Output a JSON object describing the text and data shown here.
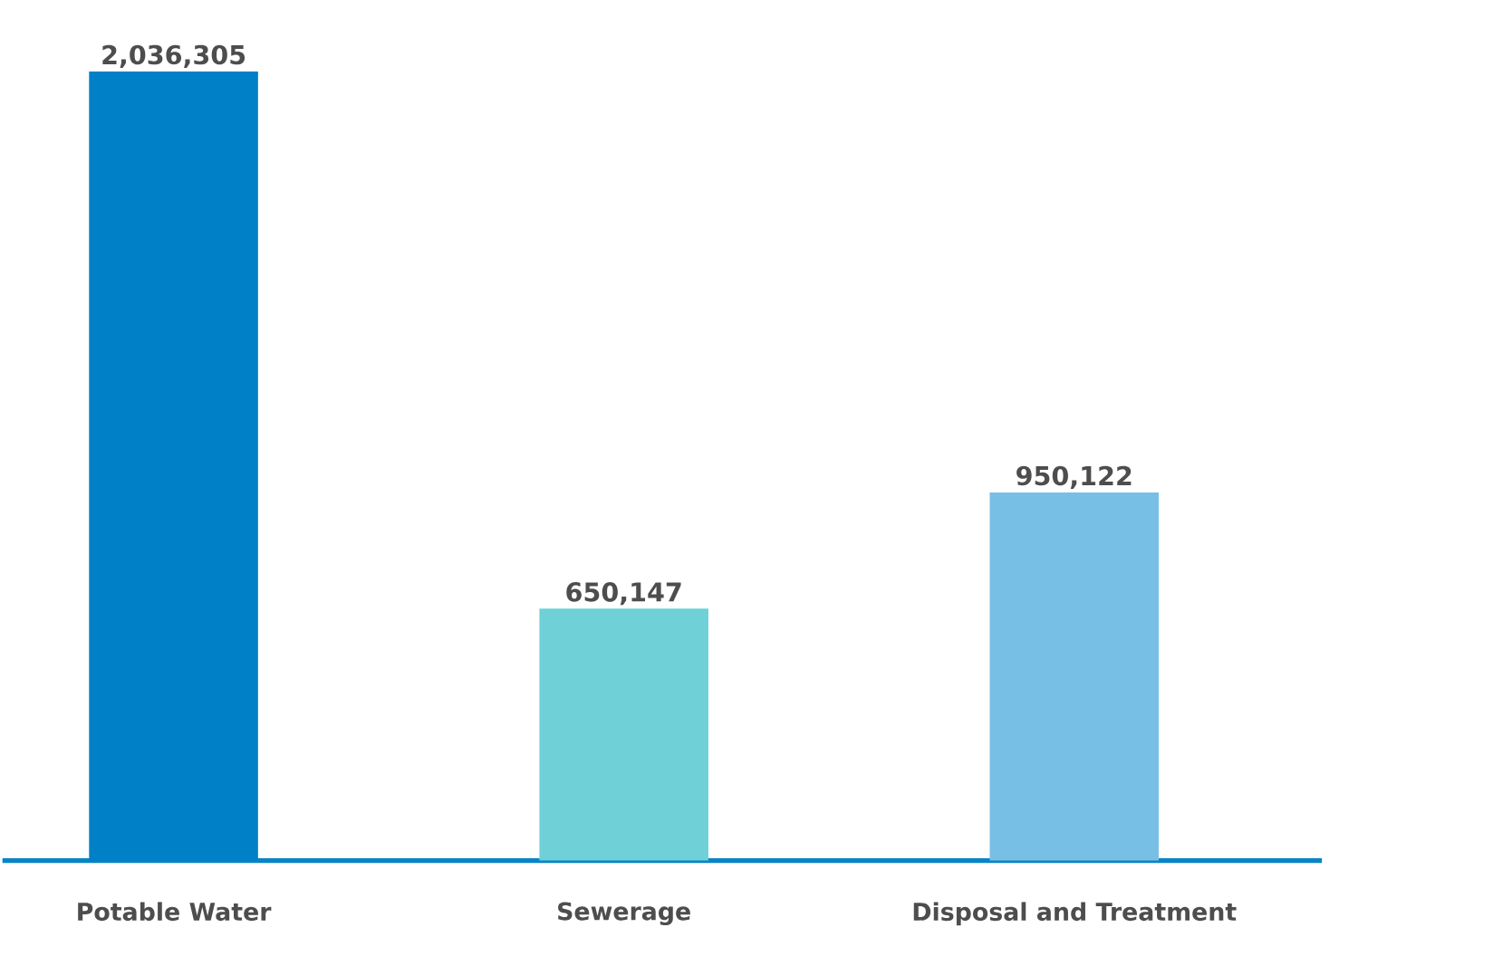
{
  "chart_data": {
    "type": "bar",
    "categories": [
      "Potable Water",
      "Sewerage",
      "Disposal and Treatment"
    ],
    "values": [
      2036305,
      650147,
      950122
    ],
    "colors": [
      "#0080c6",
      "#6fd0d8",
      "#78bfe6"
    ],
    "value_labels": [
      "2,036,305",
      "650,147",
      "950,122"
    ]
  }
}
